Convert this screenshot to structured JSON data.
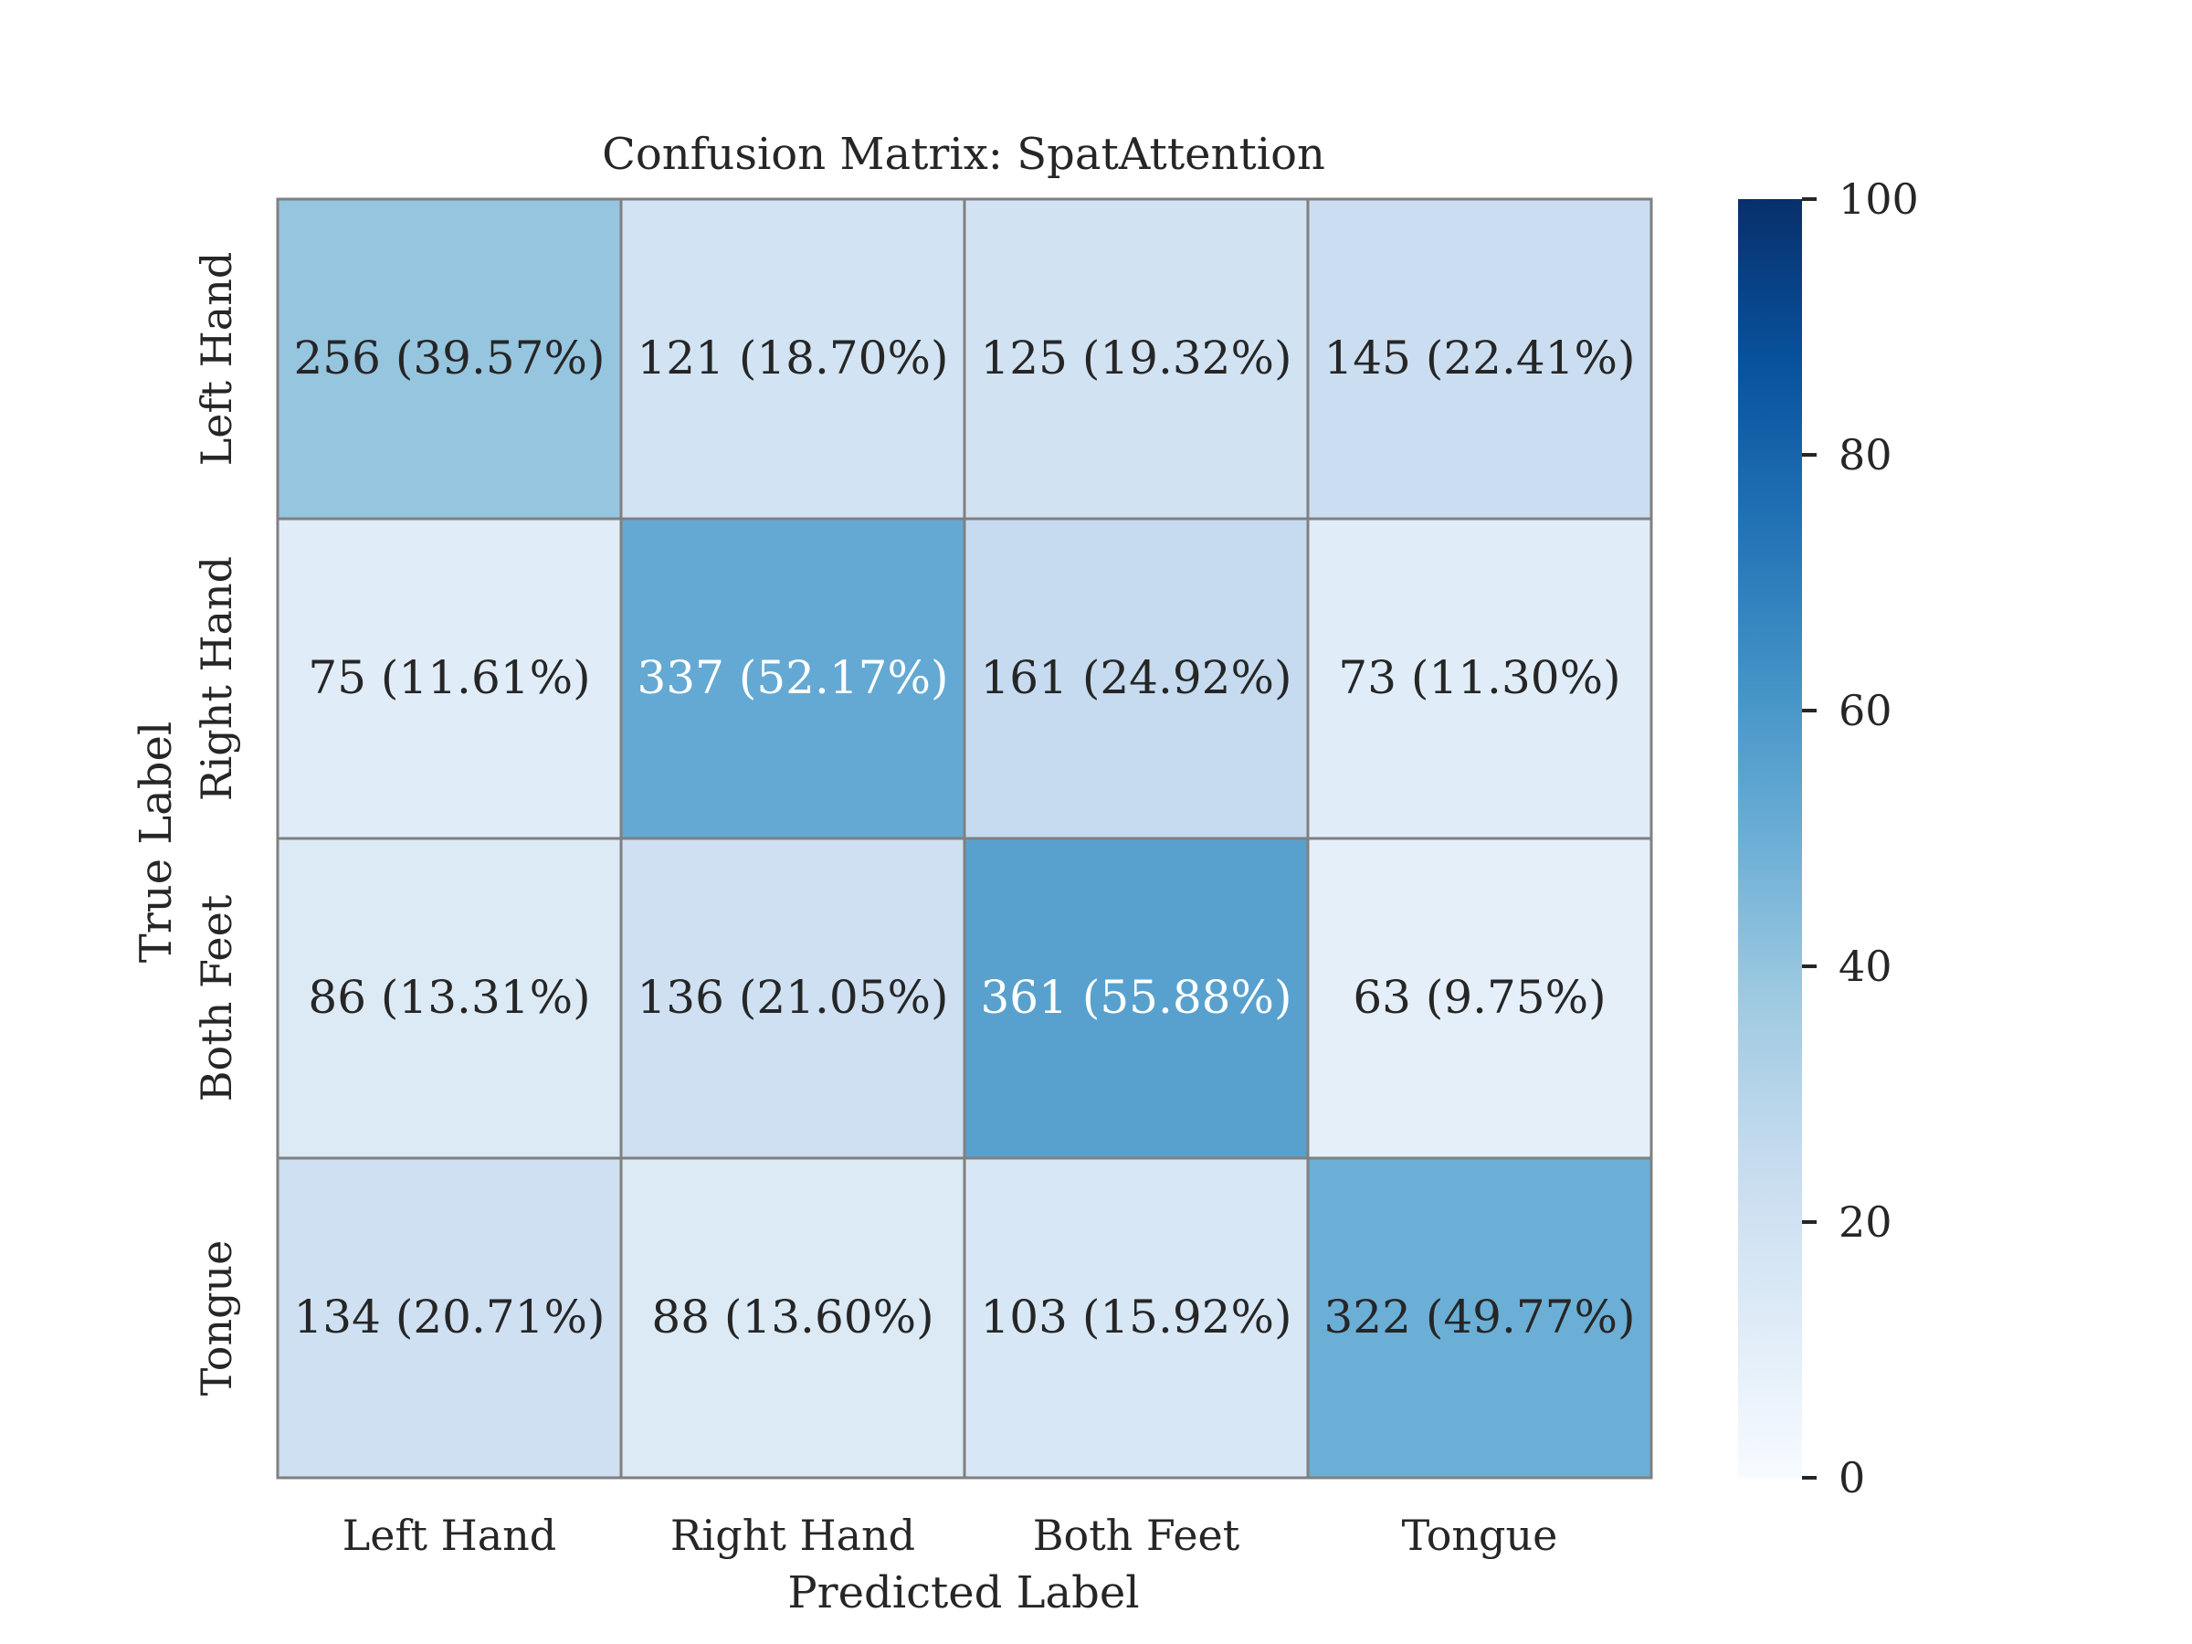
{
  "chart_data": {
    "type": "heatmap",
    "title": "Confusion Matrix: SpatAttention",
    "xlabel": "Predicted Label",
    "ylabel": "True Label",
    "x_categories": [
      "Left Hand",
      "Right Hand",
      "Both Feet",
      "Tongue"
    ],
    "y_categories": [
      "Left Hand",
      "Right Hand",
      "Both Feet",
      "Tongue"
    ],
    "counts": [
      [
        256,
        121,
        125,
        145
      ],
      [
        75,
        337,
        161,
        73
      ],
      [
        86,
        136,
        361,
        63
      ],
      [
        134,
        88,
        103,
        322
      ]
    ],
    "percentages": [
      [
        39.57,
        18.7,
        19.32,
        22.41
      ],
      [
        11.61,
        52.17,
        24.92,
        11.3
      ],
      [
        13.31,
        21.05,
        55.88,
        9.75
      ],
      [
        20.71,
        13.6,
        15.92,
        49.77
      ]
    ],
    "cell_labels": [
      [
        "256 (39.57%)",
        "121 (18.70%)",
        "125 (19.32%)",
        "145 (22.41%)"
      ],
      [
        "75 (11.61%)",
        "337 (52.17%)",
        "161 (24.92%)",
        "73 (11.30%)"
      ],
      [
        "86 (13.31%)",
        "136 (21.05%)",
        "361 (55.88%)",
        "63 (9.75%)"
      ],
      [
        "134 (20.71%)",
        "88 (13.60%)",
        "103 (15.92%)",
        "322 (49.77%)"
      ]
    ],
    "colorbar": {
      "range": [
        0,
        100
      ],
      "ticks": [
        0,
        20,
        40,
        60,
        80,
        100
      ],
      "colormap": "Blues"
    },
    "colors": {
      "cell_border": "#808080",
      "text_dark": "#262626",
      "text_light": "#ffffff"
    }
  }
}
